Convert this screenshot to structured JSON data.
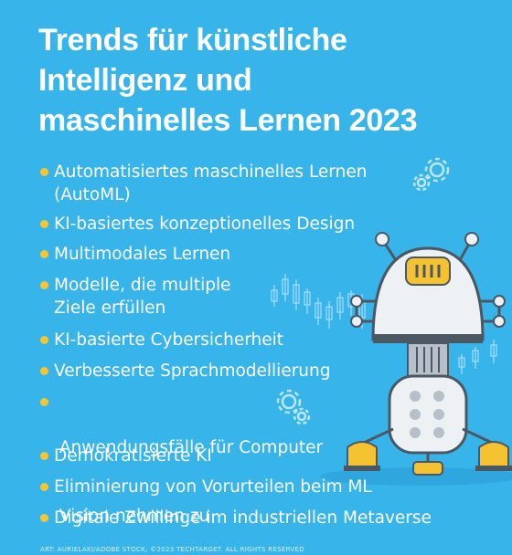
{
  "title_lines": [
    "Trends für künstliche",
    "Intelligenz und",
    "maschinelles Lernen 2023"
  ],
  "bullets": [
    {
      "lines": [
        "Automatisiertes maschinelles Lernen",
        "(AutoML)"
      ]
    },
    {
      "lines": [
        "KI-basiertes konzeptionelles Design"
      ]
    },
    {
      "lines": [
        "Multimodales Lernen"
      ]
    },
    {
      "lines": [
        "Modelle, die multiple",
        "Ziele erfüllen"
      ]
    },
    {
      "lines": [
        "KI-basierte Cybersicherheit"
      ]
    },
    {
      "lines": [
        "Verbesserte Sprachmodellierung"
      ]
    },
    {
      "lines": [
        " Anwendungsfälle für Computer",
        " Vision nehmen zu"
      ]
    },
    {
      "lines": [
        "Demokratisierte KI"
      ]
    },
    {
      "lines": [
        "Eliminierung von Vorurteilen beim ML"
      ]
    },
    {
      "lines": [
        "Digitale Zwillinge im industriellen Metaverse"
      ]
    }
  ],
  "footer": "ART: AURIELAKI/ADOBE STOCK; ©2023 TECHTARGET. ALL RIGHTS RESERVED",
  "colors": {
    "background": "#37b4ea",
    "bullet": "#f7c531",
    "robot_body": "#eef1f4",
    "robot_dark": "#4b5763",
    "robot_yellow": "#f5c232"
  },
  "icons": [
    "gear-icon",
    "robot-illustration",
    "candlestick-chart-decoration"
  ]
}
